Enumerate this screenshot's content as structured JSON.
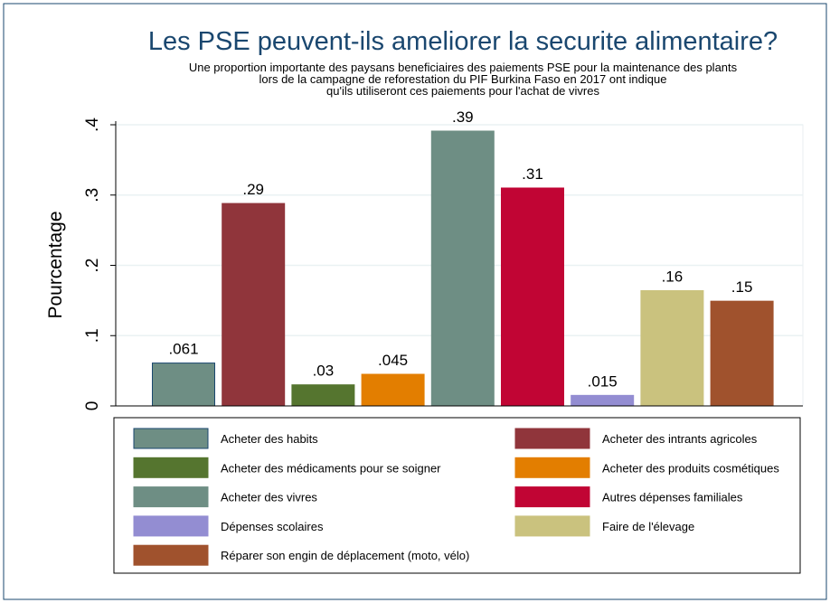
{
  "chart_data": {
    "type": "bar",
    "title": "Les PSE peuvent-ils ameliorer la securite alimentaire?",
    "subtitle": [
      "Une proportion importante des paysans beneficiaires des paiements PSE pour la maintenance des plants",
      "lors de la campagne de reforestation du PIF Burkina Faso en 2017 ont indique",
      "qu'ils utiliseront ces paiements pour l'achat de vivres"
    ],
    "ylabel": "Pourcentage",
    "ylim": [
      0,
      0.4
    ],
    "yticks": [
      0,
      0.1,
      0.2,
      0.3,
      0.4
    ],
    "ytick_labels": [
      "0",
      ".1",
      ".2",
      ".3",
      ".4"
    ],
    "grid": true,
    "legend_position": "bottom",
    "series": [
      {
        "name": "Acheter des habits",
        "value": 0.061,
        "label": ".061",
        "color": "#6e8e84",
        "outline": "#1a476f"
      },
      {
        "name": "Acheter des intrants agricoles",
        "value": 0.288,
        "label": ".29",
        "color": "#90353b",
        "outline": "#90353b"
      },
      {
        "name": "Acheter des médicaments pour se soigner",
        "value": 0.03,
        "label": ".03",
        "color": "#55752f",
        "outline": "#55752f"
      },
      {
        "name": "Acheter des produits cosmétiques",
        "value": 0.045,
        "label": ".045",
        "color": "#e37e00",
        "outline": "#e37e00"
      },
      {
        "name": "Acheter des vivres",
        "value": 0.391,
        "label": ".39",
        "color": "#6e8e84",
        "outline": "#6e8e84"
      },
      {
        "name": "Autres dépenses familiales",
        "value": 0.31,
        "label": ".31",
        "color": "#c10534",
        "outline": "#c10534"
      },
      {
        "name": "Dépenses scolaires",
        "value": 0.015,
        "label": ".015",
        "color": "#938dd2",
        "outline": "#938dd2"
      },
      {
        "name": "Faire de l'élevage",
        "value": 0.164,
        "label": ".16",
        "color": "#cac27e",
        "outline": "#cac27e"
      },
      {
        "name": "Réparer son engin de déplacement (moto, vélo)",
        "value": 0.149,
        "label": ".15",
        "color": "#a0522d",
        "outline": "#a0522d"
      }
    ]
  }
}
